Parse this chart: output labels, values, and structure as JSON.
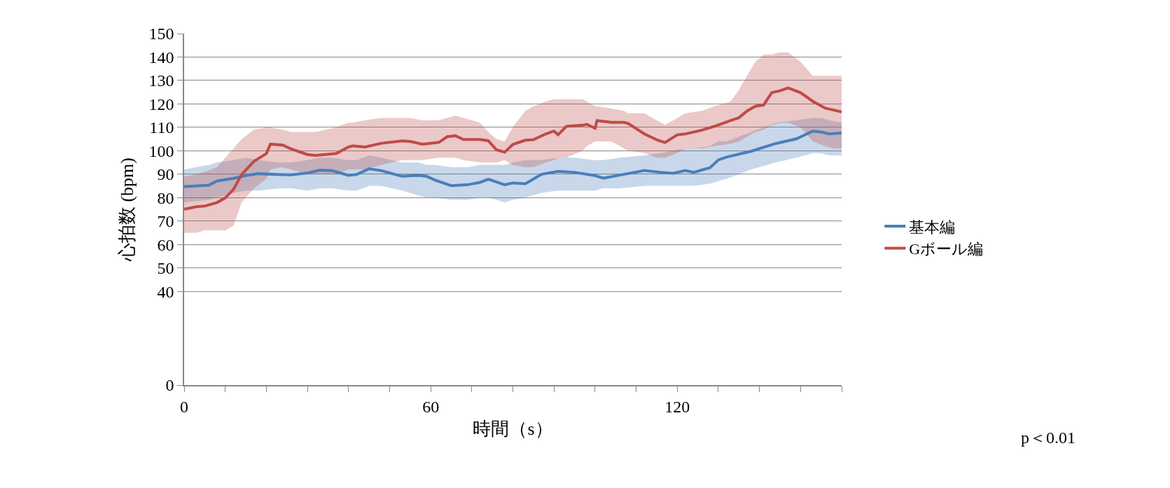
{
  "chart_data": {
    "type": "line",
    "xlabel": "時間（s）",
    "ylabel": "心拍数 (bpm)",
    "annotations": [
      "p＜0.01"
    ],
    "xlim": [
      0,
      160
    ],
    "xticks": [
      0,
      {
        "value": 10,
        "label": null
      },
      {
        "value": 20,
        "label": null
      },
      {
        "value": 30,
        "label": null
      },
      {
        "value": 40,
        "label": null
      },
      {
        "value": 50,
        "label": null
      },
      60,
      {
        "value": 70,
        "label": null
      },
      {
        "value": 80,
        "label": null
      },
      {
        "value": 90,
        "label": null
      },
      {
        "value": 100,
        "label": null
      },
      {
        "value": 110,
        "label": null
      },
      120,
      {
        "value": 130,
        "label": null
      },
      {
        "value": 140,
        "label": null
      },
      {
        "value": 150,
        "label": null
      },
      {
        "value": 160,
        "label": null
      }
    ],
    "ylim": [
      0,
      150
    ],
    "yticks": [
      0,
      40,
      50,
      60,
      70,
      80,
      90,
      100,
      110,
      120,
      130,
      140,
      150
    ],
    "grid": "y",
    "legend": "right",
    "marker": "none",
    "line_style": "solid",
    "series": [
      {
        "name": "基本編",
        "color": "#4a7ebb",
        "x": [
          0,
          6,
          8,
          12,
          15,
          18,
          23,
          26,
          30,
          33,
          36,
          40,
          42,
          45,
          48,
          53,
          57,
          59,
          61,
          65,
          69,
          72,
          74,
          76,
          78,
          80,
          83,
          87,
          91,
          95,
          100,
          102,
          106,
          112,
          116,
          119,
          122,
          124,
          128,
          130,
          132,
          138,
          144,
          149,
          153,
          155,
          157,
          160
        ],
        "values": [
          84.7,
          85.3,
          87.1,
          88.2,
          89.4,
          90.2,
          89.9,
          89.7,
          90.5,
          91.7,
          91.5,
          89.5,
          89.9,
          92.3,
          91.5,
          89.1,
          89.5,
          89.1,
          87.5,
          85.1,
          85.5,
          86.5,
          87.9,
          86.7,
          85.5,
          86.3,
          85.9,
          90.0,
          91.2,
          90.8,
          89.4,
          88.3,
          89.6,
          91.6,
          90.8,
          90.4,
          91.6,
          90.8,
          92.8,
          96.1,
          97.3,
          99.8,
          103.1,
          105.1,
          108.4,
          108.0,
          107.2,
          107.6
        ],
        "upper": [
          92,
          94,
          95,
          96,
          97,
          96,
          95,
          95,
          96,
          97,
          97,
          96,
          96,
          98,
          97,
          95,
          95,
          94,
          94,
          93,
          93,
          94,
          94,
          94,
          94,
          95,
          96,
          96,
          97,
          97,
          96,
          96,
          97,
          98,
          99,
          100,
          101,
          101,
          102,
          104,
          104,
          108,
          112,
          113,
          114,
          114,
          113,
          112
        ],
        "lower": [
          78,
          79,
          80,
          82,
          83,
          83,
          84,
          84,
          83,
          84,
          84,
          83,
          83,
          85,
          85,
          83,
          81,
          80,
          80,
          79,
          79,
          80,
          80,
          79,
          78,
          79,
          80,
          82,
          83,
          83,
          83,
          84,
          84,
          85,
          85,
          85,
          85,
          85,
          86,
          87,
          88,
          92,
          95,
          97,
          99,
          99,
          98,
          98
        ]
      },
      {
        "name": "Gボール編",
        "color": "#be4b48",
        "x": [
          0,
          3,
          5,
          8,
          10,
          12,
          14,
          17,
          20,
          21,
          24,
          26,
          30,
          32,
          37,
          40,
          41,
          44,
          48,
          53,
          55,
          58,
          62,
          64,
          66,
          68,
          72,
          74,
          76,
          78,
          80,
          83,
          85,
          88,
          90,
          91,
          93,
          97,
          98,
          100,
          100.5,
          104,
          107,
          108,
          112,
          115,
          117,
          120,
          122,
          126,
          129,
          133,
          135,
          137,
          139,
          141,
          143,
          145,
          147,
          150,
          153,
          156,
          158,
          160
        ],
        "values": [
          75.1,
          76.1,
          76.4,
          77.9,
          79.9,
          83.5,
          89.9,
          95.5,
          98.8,
          102.8,
          102.4,
          100.8,
          98.4,
          98.0,
          98.8,
          101.6,
          102.1,
          101.6,
          103.2,
          104.2,
          104.0,
          102.8,
          103.6,
          106.0,
          106.4,
          104.8,
          104.8,
          104.3,
          100.4,
          99.4,
          102.7,
          104.5,
          104.7,
          107.2,
          108.4,
          106.8,
          110.4,
          110.9,
          111.3,
          109.6,
          112.9,
          112.1,
          112.1,
          111.7,
          107.2,
          104.7,
          103.5,
          106.8,
          107.2,
          108.8,
          110.4,
          112.9,
          114.1,
          117,
          119.0,
          119.5,
          124.8,
          125.6,
          126.8,
          124.8,
          121.1,
          118.2,
          117.4,
          116.6
        ],
        "upper": [
          89,
          90,
          91,
          93,
          97,
          101,
          105,
          109,
          110,
          110,
          109,
          108,
          108,
          108,
          110,
          112,
          112,
          113,
          114,
          114,
          114,
          113,
          113,
          114,
          115,
          114,
          112,
          108,
          105,
          104,
          110,
          117,
          119,
          121,
          122,
          122,
          122,
          122,
          121,
          119,
          119,
          118,
          117,
          116,
          116,
          113,
          111,
          114,
          116,
          117,
          119,
          121,
          126,
          132,
          138,
          141,
          141,
          142,
          142,
          138,
          132,
          132,
          132,
          132
        ],
        "lower": [
          65,
          65,
          66,
          66,
          66,
          68,
          78,
          84,
          88,
          92,
          93,
          92,
          90,
          90,
          90,
          92,
          92,
          92,
          94,
          96,
          96,
          96,
          97,
          97,
          97,
          96,
          95,
          95,
          95,
          96,
          94,
          93,
          93,
          95,
          96,
          97,
          97,
          100,
          102,
          104,
          104,
          104,
          101,
          100,
          99,
          97,
          97,
          99,
          101,
          101,
          102,
          103,
          104,
          106,
          108,
          109,
          111,
          112,
          112,
          110,
          104,
          102,
          101,
          101
        ]
      }
    ]
  }
}
